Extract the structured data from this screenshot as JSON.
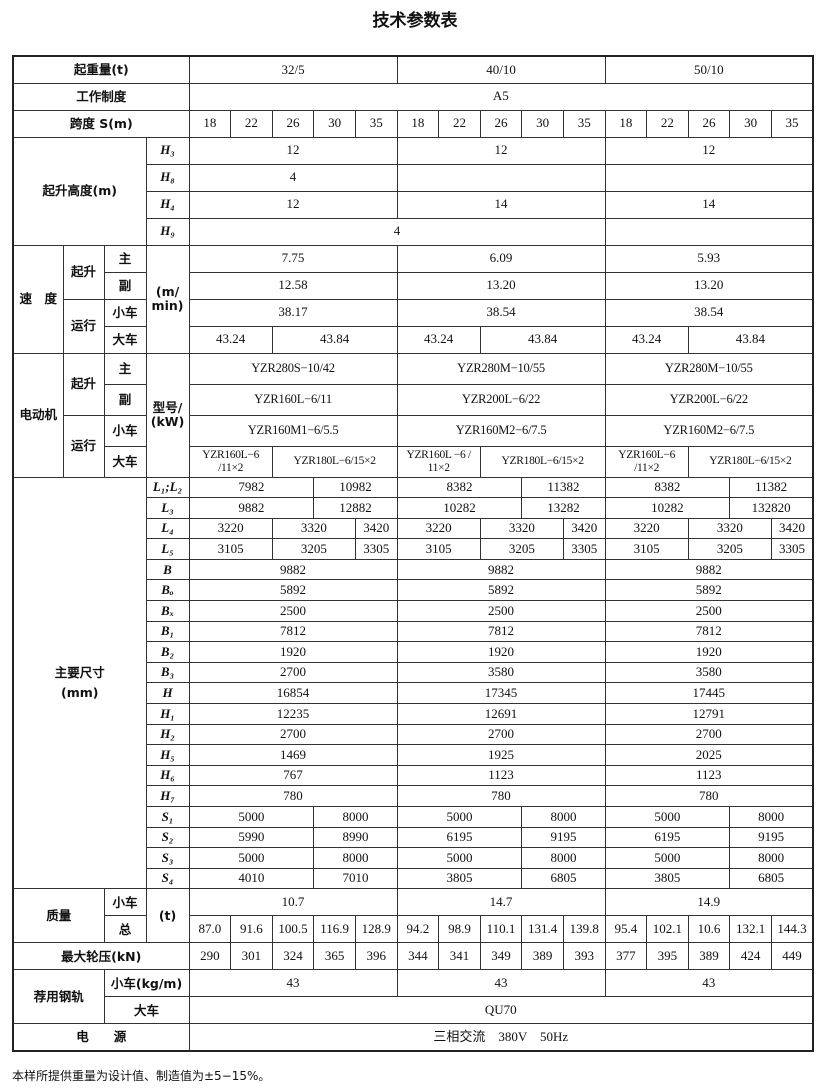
{
  "title": "技术参数表",
  "capacity": {
    "label": "起重量(t)",
    "values": [
      "32/5",
      "40/10",
      "50/10"
    ]
  },
  "duty": {
    "label": "工作制度",
    "value": "A5"
  },
  "span": {
    "label": "跨度 S(m)",
    "values": [
      "18",
      "22",
      "26",
      "30",
      "35",
      "18",
      "22",
      "26",
      "30",
      "35",
      "18",
      "22",
      "26",
      "30",
      "35"
    ]
  },
  "lift_height": {
    "label": "起升高度(m)",
    "rows": [
      {
        "sym": "H₃",
        "values": [
          "12",
          "12",
          "12"
        ]
      },
      {
        "sym": "H₈",
        "values": [
          "4",
          "",
          ""
        ]
      },
      {
        "sym": "H₄",
        "values": [
          "12",
          "14",
          "14"
        ]
      },
      {
        "sym": "H₉",
        "values": [
          "4",
          ""
        ]
      }
    ]
  },
  "speed": {
    "label": "速　度",
    "hoist": "起升",
    "travel": "运行",
    "unit": "(m/ min)",
    "rows": [
      {
        "sub": "主",
        "values": [
          "7.75",
          "6.09",
          "5.93"
        ]
      },
      {
        "sub": "副",
        "values": [
          "12.58",
          "13.20",
          "13.20"
        ]
      },
      {
        "sub": "小车",
        "values": [
          "38.17",
          "38.54",
          "38.54"
        ]
      },
      {
        "sub": "大车",
        "values": [
          "43.24",
          "43.84",
          "43.24",
          "43.84",
          "43.24",
          "43.84"
        ]
      }
    ]
  },
  "motor": {
    "label": "电动机",
    "hoist": "起升",
    "travel": "运行",
    "unit": "型号/ (kW)",
    "rows": [
      {
        "sub": "主",
        "values": [
          "YZR280S−10/42",
          "YZR280M−10/55",
          "YZR280M−10/55"
        ]
      },
      {
        "sub": "副",
        "values": [
          "YZR160L−6/11",
          "YZR200L−6/22",
          "YZR200L−6/22"
        ]
      },
      {
        "sub": "小车",
        "values": [
          "YZR160M1−6/5.5",
          "YZR160M2−6/7.5",
          "YZR160M2−6/7.5"
        ]
      },
      {
        "sub": "大车",
        "values": [
          "YZR160L−6 /11×2",
          "YZR180L−6/15×2",
          "YZR160L −6 / 11×2",
          "YZR180L−6/15×2",
          "YZR160L−6 /11×2",
          "YZR180L−6/15×2"
        ]
      }
    ]
  },
  "dimensions": {
    "label": "主要尺寸",
    "unit": "(mm)",
    "rows": [
      {
        "sym": "L₁;L₂",
        "values": [
          "7982",
          "10982",
          "8382",
          "11382",
          "8382",
          "11382"
        ]
      },
      {
        "sym": "L₃",
        "values": [
          "9882",
          "12882",
          "10282",
          "13282",
          "10282",
          "132820"
        ]
      },
      {
        "sym": "L₄",
        "values": [
          "3220",
          "3320",
          "3420",
          "3220",
          "3320",
          "3420",
          "3220",
          "3320",
          "3420"
        ]
      },
      {
        "sym": "L₅",
        "values": [
          "3105",
          "3205",
          "3305",
          "3105",
          "3205",
          "3305",
          "3105",
          "3205",
          "3305"
        ]
      },
      {
        "sym": "B",
        "values": [
          "9882",
          "9882",
          "9882"
        ]
      },
      {
        "sym": "Bₒ",
        "values": [
          "5892",
          "5892",
          "5892"
        ]
      },
      {
        "sym": "Bₓ",
        "values": [
          "2500",
          "2500",
          "2500"
        ]
      },
      {
        "sym": "B₁",
        "values": [
          "7812",
          "7812",
          "7812"
        ]
      },
      {
        "sym": "B₂",
        "values": [
          "1920",
          "1920",
          "1920"
        ]
      },
      {
        "sym": "B₃",
        "values": [
          "2700",
          "3580",
          "3580"
        ]
      },
      {
        "sym": "H",
        "values": [
          "16854",
          "17345",
          "17445"
        ]
      },
      {
        "sym": "H₁",
        "values": [
          "12235",
          "12691",
          "12791"
        ]
      },
      {
        "sym": "H₂",
        "values": [
          "2700",
          "2700",
          "2700"
        ]
      },
      {
        "sym": "H₅",
        "values": [
          "1469",
          "1925",
          "2025"
        ]
      },
      {
        "sym": "H₆",
        "values": [
          "767",
          "1123",
          "1123"
        ]
      },
      {
        "sym": "H₇",
        "values": [
          "780",
          "780",
          "780"
        ]
      },
      {
        "sym": "S₁",
        "values": [
          "5000",
          "8000",
          "5000",
          "8000",
          "5000",
          "8000"
        ]
      },
      {
        "sym": "S₂",
        "values": [
          "5990",
          "8990",
          "6195",
          "9195",
          "6195",
          "9195"
        ]
      },
      {
        "sym": "S₃",
        "values": [
          "5000",
          "8000",
          "5000",
          "8000",
          "5000",
          "8000"
        ]
      },
      {
        "sym": "S₄",
        "values": [
          "4010",
          "7010",
          "3805",
          "6805",
          "3805",
          "6805"
        ]
      }
    ]
  },
  "mass": {
    "label": "质量",
    "unit": "(t)",
    "rows": [
      {
        "sub": "小车",
        "values": [
          "10.7",
          "14.7",
          "14.9"
        ]
      },
      {
        "sub": "总",
        "values": [
          "87.0",
          "91.6",
          "100.5",
          "116.9",
          "128.9",
          "94.2",
          "98.9",
          "110.1",
          "131.4",
          "139.8",
          "95.4",
          "102.1",
          "10.6",
          "132.1",
          "144.3"
        ]
      }
    ]
  },
  "wheel_pressure": {
    "label": "最大轮压(kN)",
    "values": [
      "290",
      "301",
      "324",
      "365",
      "396",
      "344",
      "341",
      "349",
      "389",
      "393",
      "377",
      "395",
      "389",
      "424",
      "449"
    ]
  },
  "rail": {
    "label": "荐用钢轨",
    "rows": [
      {
        "sub": "小车(kg/m)",
        "values": [
          "43",
          "43",
          "43"
        ]
      },
      {
        "sub": "大车",
        "values": [
          "QU70"
        ]
      }
    ]
  },
  "power": {
    "label": "电　　源",
    "value": "三相交流　380V　50Hz"
  },
  "footnote": "本样所提供重量为设计值、制造值为±5−15%。"
}
